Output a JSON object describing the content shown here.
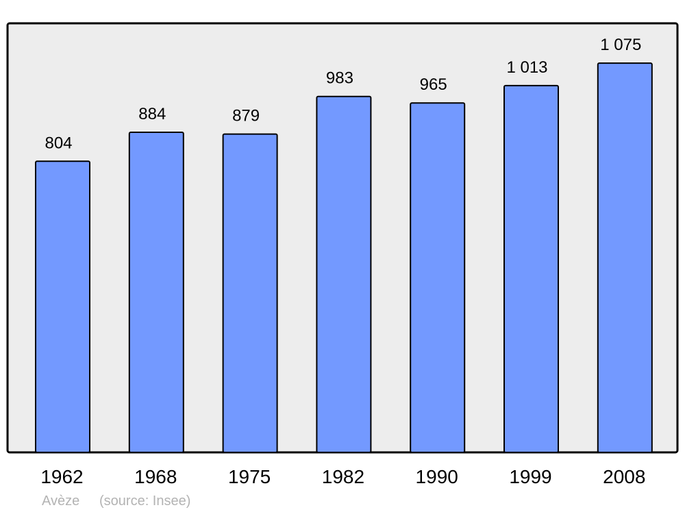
{
  "chart_data": {
    "type": "bar",
    "categories": [
      "1962",
      "1968",
      "1975",
      "1982",
      "1990",
      "1999",
      "2008"
    ],
    "values": [
      804,
      884,
      879,
      983,
      965,
      1013,
      1075
    ],
    "data_labels": [
      "804",
      "884",
      "879",
      "983",
      "965",
      "1 013",
      "1 075"
    ],
    "title": "",
    "xlabel": "",
    "ylabel": "",
    "ylim": [
      0,
      1185
    ],
    "grid": false,
    "colors": {
      "bar": "#7399ff",
      "background": "#ededed",
      "border": "#000000"
    }
  },
  "footer": {
    "commune": "Avèze",
    "source": "(source: Insee)"
  }
}
